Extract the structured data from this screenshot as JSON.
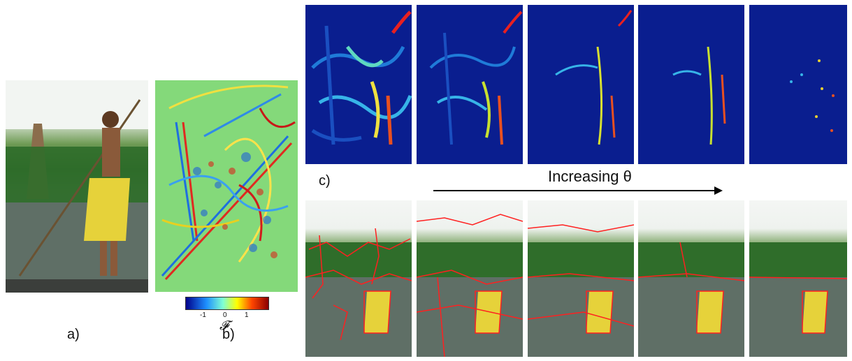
{
  "figure": {
    "panel_labels": {
      "a": "a)",
      "b": "b)",
      "c": "c)"
    },
    "arrow_label": "Increasing θ",
    "colorbar": {
      "ticks": [
        "-1",
        "0",
        "1"
      ],
      "symbol": "𝓕",
      "colors": [
        "#00008b",
        "#1e90ff",
        "#7fffd4",
        "#ffff00",
        "#ff4500",
        "#8b0000"
      ]
    },
    "colors": {
      "map_background": "#0a1e8f",
      "boundary": "#ff2020",
      "feature_background": "#84d97a"
    }
  }
}
